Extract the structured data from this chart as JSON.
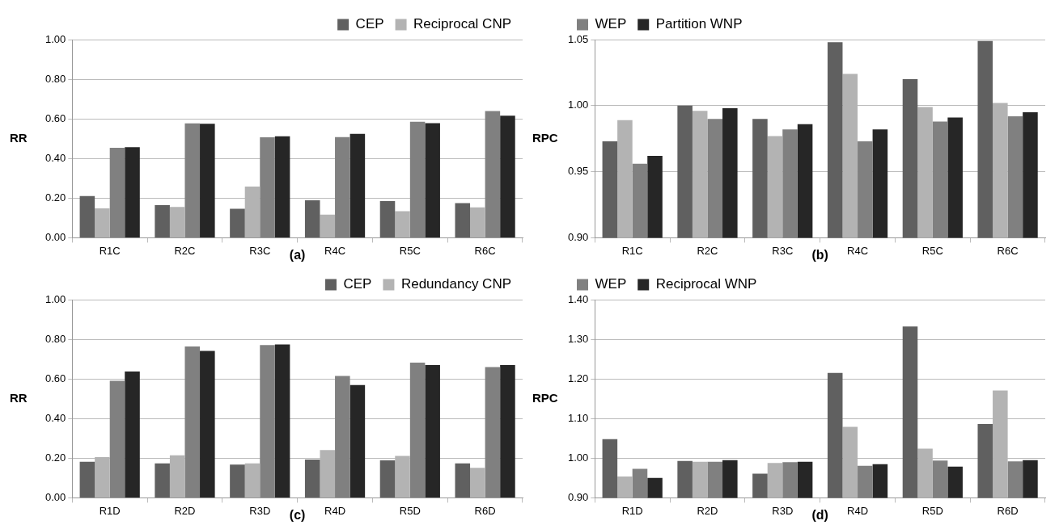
{
  "chart_data": [
    {
      "type": "bar",
      "ylabel": "RR",
      "annotations": [
        "(a)"
      ],
      "categories": [
        "R1C",
        "R2C",
        "R3C",
        "R4C",
        "R5C",
        "R6C"
      ],
      "ylim": [
        0,
        1
      ],
      "yticks": [
        {
          "value": 0,
          "label": "0.00"
        },
        {
          "value": 0.2,
          "label": "0.20"
        },
        {
          "value": 0.4,
          "label": "0.40"
        },
        {
          "value": 0.6,
          "label": "0.60"
        },
        {
          "value": 0.8,
          "label": "0.80"
        },
        {
          "value": 1,
          "label": "1.00"
        }
      ],
      "grid": "y",
      "legend": "top right",
      "series": [
        {
          "name": "CEP",
          "color": "#606060",
          "values": [
            0.21,
            0.165,
            0.146,
            0.189,
            0.185,
            0.175
          ]
        },
        {
          "name": "Reciprocal CNP",
          "color": "#b3b3b3",
          "values": [
            0.148,
            0.155,
            0.258,
            0.117,
            0.134,
            0.153
          ]
        },
        {
          "color": "#808080",
          "values": [
            0.454,
            0.577,
            0.507,
            0.508,
            0.585,
            0.639
          ]
        },
        {
          "color": "#262626",
          "values": [
            0.457,
            0.575,
            0.512,
            0.524,
            0.578,
            0.616
          ]
        }
      ]
    },
    {
      "type": "bar",
      "ylabel": "RPC",
      "annotations": [
        "(b)"
      ],
      "categories": [
        "R1C",
        "R2C",
        "R3C",
        "R4C",
        "R5C",
        "R6C"
      ],
      "ylim": [
        0.9,
        1.05
      ],
      "yticks": [
        {
          "value": 0.9,
          "label": "0.90"
        },
        0.95,
        {
          "value": 1,
          "label": "1.00"
        },
        1.05
      ],
      "grid": "y",
      "legend": "top left",
      "series": [
        {
          "color": "#606060",
          "values": [
            0.973,
            1.0,
            0.99,
            1.048,
            1.02,
            1.049
          ]
        },
        {
          "color": "#b3b3b3",
          "values": [
            0.989,
            0.996,
            0.977,
            1.024,
            0.999,
            1.002
          ]
        },
        {
          "name": "WEP",
          "color": "#808080",
          "values": [
            0.956,
            0.99,
            0.982,
            0.973,
            0.988,
            0.992
          ]
        },
        {
          "name": "Partition WNP",
          "color": "#262626",
          "values": [
            0.962,
            0.998,
            0.986,
            0.982,
            0.991,
            0.995
          ]
        }
      ]
    },
    {
      "type": "bar",
      "ylabel": "RR",
      "annotations": [
        "(c)"
      ],
      "categories": [
        "R1D",
        "R2D",
        "R3D",
        "R4D",
        "R5D",
        "R6D"
      ],
      "ylim": [
        0,
        1
      ],
      "yticks": [
        {
          "value": 0,
          "label": "0.00"
        },
        {
          "value": 0.2,
          "label": "0.20"
        },
        {
          "value": 0.4,
          "label": "0.40"
        },
        {
          "value": 0.6,
          "label": "0.60"
        },
        {
          "value": 0.8,
          "label": "0.80"
        },
        {
          "value": 1,
          "label": "1.00"
        }
      ],
      "grid": "y",
      "legend": "top right",
      "series": [
        {
          "name": "CEP",
          "color": "#606060",
          "values": [
            0.182,
            0.174,
            0.168,
            0.193,
            0.189,
            0.174
          ]
        },
        {
          "name": "Redundancy CNP",
          "color": "#b3b3b3",
          "values": [
            0.205,
            0.215,
            0.174,
            0.241,
            0.212,
            0.151
          ]
        },
        {
          "color": "#808080",
          "values": [
            0.59,
            0.764,
            0.771,
            0.615,
            0.682,
            0.66
          ]
        },
        {
          "color": "#262626",
          "values": [
            0.637,
            0.741,
            0.774,
            0.569,
            0.67,
            0.67
          ]
        }
      ]
    },
    {
      "type": "bar",
      "ylabel": "RPC",
      "annotations": [
        "(d)"
      ],
      "categories": [
        "R1D",
        "R2D",
        "R3D",
        "R4D",
        "R5D",
        "R6D"
      ],
      "ylim": [
        0.9,
        1.4
      ],
      "yticks": [
        {
          "value": 0.9,
          "label": "0.90"
        },
        {
          "value": 1,
          "label": "1.00"
        },
        {
          "value": 1.1,
          "label": "1.10"
        },
        {
          "value": 1.2,
          "label": "1.20"
        },
        {
          "value": 1.3,
          "label": "1.30"
        },
        {
          "value": 1.4,
          "label": "1.40"
        }
      ],
      "grid": "y",
      "legend": "top left",
      "series": [
        {
          "color": "#606060",
          "values": [
            1.048,
            0.993,
            0.961,
            1.215,
            1.332,
            1.086
          ]
        },
        {
          "color": "#b3b3b3",
          "values": [
            0.954,
            0.991,
            0.988,
            1.079,
            1.024,
            1.171
          ]
        },
        {
          "name": "WEP",
          "color": "#808080",
          "values": [
            0.973,
            0.991,
            0.99,
            0.981,
            0.994,
            0.992
          ]
        },
        {
          "name": "Reciprocal WNP",
          "color": "#262626",
          "values": [
            0.95,
            0.995,
            0.991,
            0.985,
            0.979,
            0.995
          ]
        }
      ]
    }
  ]
}
